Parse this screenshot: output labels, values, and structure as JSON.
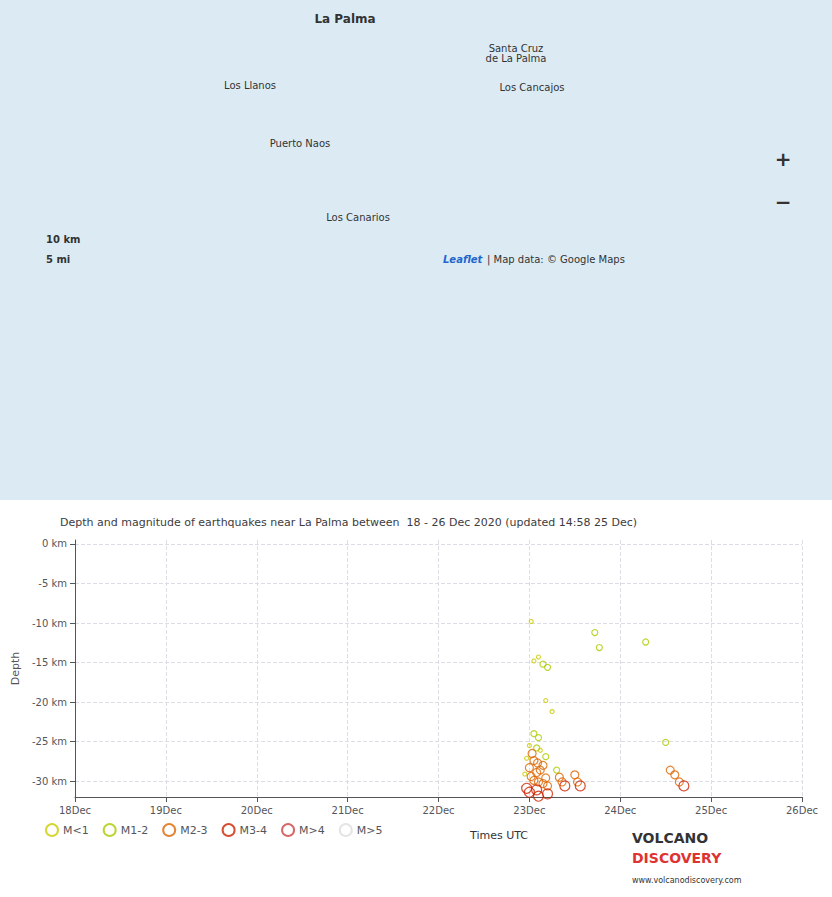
{
  "chart_data": {
    "type": "scatter",
    "title": "Depth and magnitude of earthquakes near La Palma between  18 - 26 Dec 2020 (updated 14:58 25 Dec)",
    "y_label": "Depth",
    "xlim": [
      0,
      8
    ],
    "xticks": [
      {
        "value": 0,
        "label": "18Dec"
      },
      {
        "value": 1,
        "label": "19Dec"
      },
      {
        "value": 2,
        "label": "20Dec"
      },
      {
        "value": 3,
        "label": "21Dec"
      },
      {
        "value": 4,
        "label": "22Dec"
      },
      {
        "value": 5,
        "label": "23Dec"
      },
      {
        "value": 6,
        "label": "24Dec"
      },
      {
        "value": 7,
        "label": "25Dec"
      },
      {
        "value": 8,
        "label": "26Dec"
      }
    ],
    "ylim": [
      -32,
      0.5
    ],
    "yticks": [
      {
        "value": 0,
        "label": "0 km"
      },
      {
        "value": -5,
        "label": "-5 km"
      },
      {
        "value": -10,
        "label": "-10 km"
      },
      {
        "value": -15,
        "label": "-15 km"
      },
      {
        "value": -20,
        "label": "-20 km"
      },
      {
        "value": -25,
        "label": "-25 km"
      },
      {
        "value": -30,
        "label": "-30 km"
      }
    ],
    "grid": true,
    "legend": "bottom",
    "marker": "circle",
    "series": [
      {
        "name": "M<1",
        "color": "#cccc00",
        "x": [
          5.02,
          5.1,
          5.05,
          5.18,
          5.25,
          5.0,
          5.12,
          4.97,
          4.95
        ],
        "values": [
          -9.8,
          -14.3,
          -14.8,
          -19.8,
          -21.2,
          -25.5,
          -26.1,
          -27.1,
          -29.1
        ]
      },
      {
        "name": "M1-2",
        "color": "#aacc00",
        "x": [
          5.15,
          5.2,
          5.05,
          5.1,
          5.08,
          5.18,
          5.3,
          5.72,
          5.77,
          6.28,
          6.5
        ],
        "values": [
          -15.2,
          -15.6,
          -24.0,
          -24.5,
          -25.8,
          -26.9,
          -28.6,
          -11.2,
          -13.1,
          -12.4,
          -25.1
        ]
      },
      {
        "name": "M2-3",
        "color": "#dd6600",
        "x": [
          5.03,
          5.05,
          5.09,
          5.15,
          5.0,
          5.12,
          5.08,
          5.02,
          5.18,
          5.05,
          5.1,
          5.15,
          5.2,
          5.33,
          5.36,
          5.5,
          5.53,
          6.55,
          6.6,
          6.65
        ],
        "values": [
          -26.5,
          -27.4,
          -27.7,
          -28.0,
          -28.3,
          -28.6,
          -28.9,
          -29.4,
          -29.6,
          -29.9,
          -30.1,
          -30.3,
          -30.6,
          -29.5,
          -30.1,
          -29.2,
          -30.1,
          -28.6,
          -29.2,
          -30.1
        ]
      },
      {
        "name": "M3-4",
        "color": "#cc2200",
        "x": [
          4.97,
          5.08,
          5.0,
          5.2,
          5.1,
          5.39,
          5.56,
          6.7
        ],
        "values": [
          -30.9,
          -31.1,
          -31.4,
          -31.6,
          -31.9,
          -30.6,
          -30.6,
          -30.6
        ]
      },
      {
        "name": "M>4",
        "color": "#cc4444",
        "x": [],
        "values": []
      },
      {
        "name": "M>5",
        "color": "#dddddd",
        "x": [],
        "values": []
      }
    ],
    "annotations": [
      "La Palma",
      "Santa Cruz\nde La Palma",
      "Los Llanos",
      "Los Cancajos",
      "Puerto Naos",
      "Los Canarios",
      "10 km",
      "5 mi",
      "Leaflet",
      "| Map data: © Google Maps",
      "+",
      "−",
      "Times UTC",
      "VOLCANO",
      "DISCOVERY",
      "www.volcanodiscovery.com"
    ]
  }
}
